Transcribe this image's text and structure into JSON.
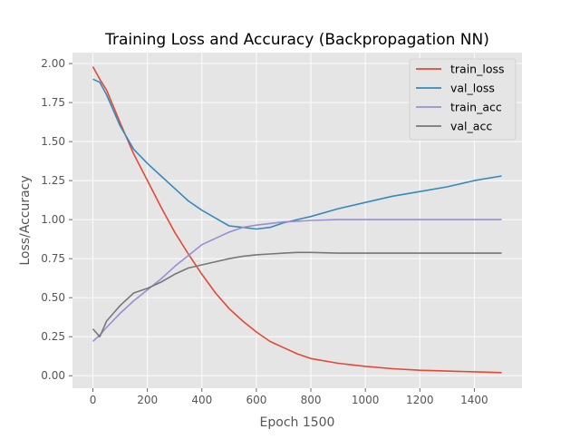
{
  "chart_data": {
    "type": "line",
    "title": "Training Loss and Accuracy (Backpropagation NN)",
    "xlabel": "Epoch 1500",
    "ylabel": "Loss/Accuracy",
    "xlim": [
      -75,
      1575
    ],
    "ylim": [
      -0.08,
      2.07
    ],
    "xticks": [
      0,
      200,
      400,
      600,
      800,
      1000,
      1200,
      1400
    ],
    "xtick_labels": [
      "0",
      "200",
      "400",
      "600",
      "800",
      "1000",
      "1200",
      "1400"
    ],
    "yticks": [
      0.0,
      0.25,
      0.5,
      0.75,
      1.0,
      1.25,
      1.5,
      1.75,
      2.0
    ],
    "ytick_labels": [
      "0.00",
      "0.25",
      "0.50",
      "0.75",
      "1.00",
      "1.25",
      "1.50",
      "1.75",
      "2.00"
    ],
    "grid": true,
    "legend_position": "top-right",
    "series": [
      {
        "name": "train_loss",
        "color": "#E24A33",
        "x": [
          0,
          25,
          50,
          100,
          150,
          200,
          250,
          300,
          350,
          400,
          450,
          500,
          550,
          600,
          650,
          700,
          750,
          800,
          900,
          1000,
          1100,
          1200,
          1300,
          1400,
          1500
        ],
        "y": [
          1.98,
          1.9,
          1.83,
          1.62,
          1.42,
          1.25,
          1.08,
          0.92,
          0.78,
          0.65,
          0.53,
          0.43,
          0.35,
          0.28,
          0.22,
          0.18,
          0.14,
          0.11,
          0.08,
          0.06,
          0.045,
          0.035,
          0.03,
          0.025,
          0.02
        ]
      },
      {
        "name": "val_loss",
        "color": "#348ABD",
        "x": [
          0,
          25,
          50,
          75,
          100,
          150,
          200,
          250,
          300,
          350,
          400,
          450,
          500,
          550,
          600,
          650,
          700,
          750,
          800,
          900,
          1000,
          1100,
          1200,
          1300,
          1400,
          1500
        ],
        "y": [
          1.9,
          1.88,
          1.8,
          1.7,
          1.6,
          1.45,
          1.36,
          1.28,
          1.2,
          1.12,
          1.06,
          1.01,
          0.96,
          0.95,
          0.94,
          0.95,
          0.98,
          1.0,
          1.02,
          1.07,
          1.11,
          1.15,
          1.18,
          1.21,
          1.25,
          1.28
        ]
      },
      {
        "name": "train_acc",
        "color": "#988ED5",
        "x": [
          0,
          25,
          50,
          100,
          150,
          200,
          250,
          300,
          350,
          400,
          450,
          500,
          550,
          600,
          650,
          700,
          750,
          800,
          900,
          1000,
          1100,
          1200,
          1300,
          1400,
          1500
        ],
        "y": [
          0.22,
          0.26,
          0.31,
          0.4,
          0.48,
          0.55,
          0.62,
          0.7,
          0.77,
          0.84,
          0.88,
          0.92,
          0.95,
          0.965,
          0.975,
          0.985,
          0.99,
          0.995,
          1.0,
          1.0,
          1.0,
          1.0,
          1.0,
          1.0,
          1.0
        ]
      },
      {
        "name": "val_acc",
        "color": "#777777",
        "x": [
          0,
          25,
          50,
          100,
          150,
          200,
          250,
          300,
          350,
          400,
          450,
          500,
          550,
          600,
          650,
          700,
          750,
          800,
          900,
          1000,
          1100,
          1200,
          1300,
          1400,
          1500
        ],
        "y": [
          0.3,
          0.25,
          0.35,
          0.45,
          0.53,
          0.56,
          0.6,
          0.65,
          0.69,
          0.71,
          0.73,
          0.75,
          0.765,
          0.775,
          0.78,
          0.785,
          0.79,
          0.79,
          0.785,
          0.785,
          0.785,
          0.785,
          0.785,
          0.785,
          0.785
        ]
      }
    ]
  }
}
